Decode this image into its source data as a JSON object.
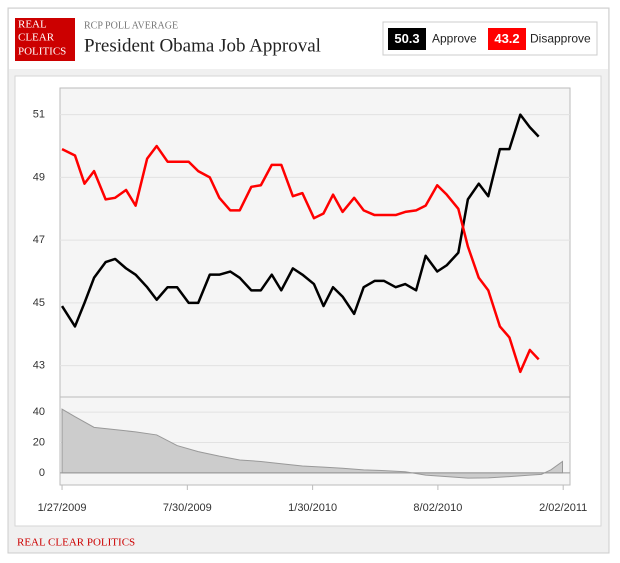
{
  "header": {
    "logo": [
      "REAL",
      "CLEAR",
      "POLITICS"
    ]
  },
  "footer": "REAL CLEAR POLITICS",
  "chart_data": [
    {
      "type": "line",
      "subtitle": "RCP POLL AVERAGE",
      "title": "President Obama Job Approval",
      "x": [
        "2009-01-27",
        "2009-02-15",
        "2009-03-01",
        "2009-03-15",
        "2009-04-01",
        "2009-04-15",
        "2009-05-01",
        "2009-05-15",
        "2009-06-01",
        "2009-06-15",
        "2009-07-01",
        "2009-07-15",
        "2009-08-01",
        "2009-08-15",
        "2009-09-01",
        "2009-09-15",
        "2009-10-01",
        "2009-10-15",
        "2009-11-01",
        "2009-11-15",
        "2009-12-01",
        "2009-12-15",
        "2010-01-01",
        "2010-01-15",
        "2010-02-01",
        "2010-02-15",
        "2010-03-01",
        "2010-03-15",
        "2010-04-01",
        "2010-04-15",
        "2010-05-01",
        "2010-05-15",
        "2010-06-01",
        "2010-06-15",
        "2010-07-01",
        "2010-07-15",
        "2010-08-01",
        "2010-08-15",
        "2010-09-01",
        "2010-09-15",
        "2010-10-01",
        "2010-10-15",
        "2010-11-01",
        "2010-11-15",
        "2010-12-01",
        "2010-12-15",
        "2010-12-28"
      ],
      "series": [
        {
          "name": "Approve",
          "color": "#000000",
          "values": [
            44.9,
            44.25,
            45.0,
            45.8,
            46.3,
            46.4,
            46.1,
            45.9,
            45.5,
            45.1,
            45.5,
            45.5,
            45.0,
            45.0,
            45.9,
            45.9,
            46.0,
            45.8,
            45.4,
            45.4,
            45.9,
            45.4,
            46.1,
            45.9,
            45.6,
            44.9,
            45.5,
            45.2,
            44.65,
            45.5,
            45.7,
            45.7,
            45.5,
            45.6,
            45.4,
            46.5,
            46.0,
            46.2,
            46.6,
            48.3,
            48.8,
            48.4,
            49.9,
            49.9,
            51.0,
            50.6,
            50.3
          ]
        },
        {
          "name": "Disapprove",
          "color": "#ff0000",
          "values": [
            49.9,
            49.7,
            48.8,
            49.2,
            48.3,
            48.35,
            48.6,
            48.1,
            49.6,
            50.0,
            49.5,
            49.5,
            49.5,
            49.2,
            49.0,
            48.35,
            47.95,
            47.95,
            48.7,
            48.75,
            49.4,
            49.4,
            48.4,
            48.5,
            47.7,
            47.85,
            48.45,
            47.9,
            48.35,
            47.95,
            47.8,
            47.8,
            47.8,
            47.9,
            47.95,
            48.1,
            48.75,
            48.45,
            48.0,
            46.8,
            45.8,
            45.4,
            44.25,
            43.9,
            42.8,
            43.5,
            43.2
          ]
        }
      ],
      "xlim": [
        "2009-01-24",
        "2011-02-12"
      ],
      "xticks": [
        {
          "value": "2009-01-27",
          "label": "1/27/2009"
        },
        {
          "value": "2009-07-30",
          "label": "7/30/2009"
        },
        {
          "value": "2010-01-30",
          "label": "1/30/2010"
        },
        {
          "value": "2010-08-02",
          "label": "8/02/2010"
        },
        {
          "value": "2011-02-02",
          "label": "2/02/2011"
        }
      ],
      "ylim": [
        42,
        51.85
      ],
      "yticks": [
        43,
        45,
        47,
        49,
        51
      ],
      "grid": true
    },
    {
      "type": "area",
      "color": "#cccccc",
      "x": [
        "2009-01-27",
        "2009-02-15",
        "2009-03-15",
        "2009-04-15",
        "2009-05-15",
        "2009-06-15",
        "2009-07-15",
        "2009-08-15",
        "2009-09-15",
        "2009-10-15",
        "2009-11-15",
        "2009-12-15",
        "2010-01-15",
        "2010-02-15",
        "2010-03-15",
        "2010-04-15",
        "2010-05-15",
        "2010-06-15",
        "2010-07-15",
        "2010-08-15",
        "2010-09-15",
        "2010-10-15",
        "2010-11-15",
        "2010-12-15",
        "2011-01-01",
        "2011-01-15",
        "2011-02-01"
      ],
      "values": [
        42,
        37,
        30,
        28.5,
        27,
        25,
        18,
        14,
        11,
        8.5,
        7.5,
        6,
        4.5,
        3.8,
        3,
        2,
        1.5,
        0.7,
        -1.5,
        -2.5,
        -3.5,
        -3.3,
        -2.5,
        -1.5,
        -1,
        2,
        7.5
      ],
      "xlim": [
        "2009-01-24",
        "2011-02-12"
      ],
      "ylim": [
        -8,
        50
      ],
      "yticks": [
        0,
        20,
        40
      ],
      "grid": true
    }
  ]
}
